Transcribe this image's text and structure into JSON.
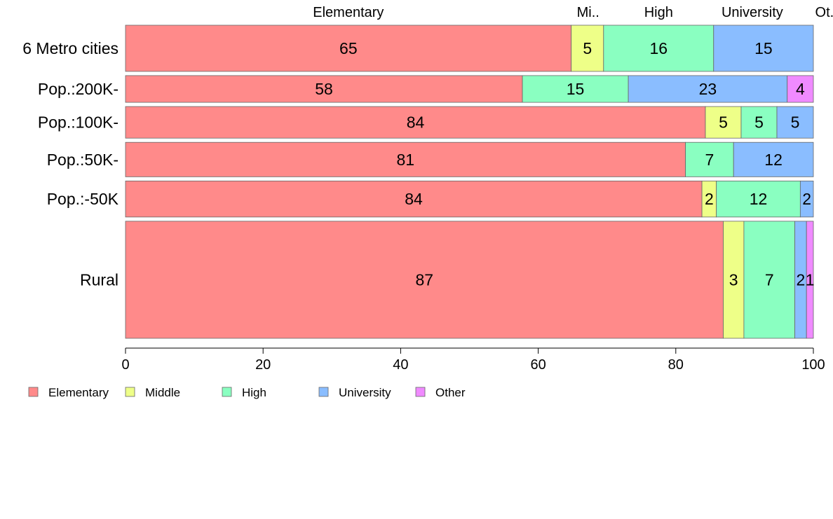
{
  "chart_data": {
    "type": "bar",
    "orientation": "horizontal",
    "stacked": true,
    "variable_width": true,
    "categories": [
      "6 Metro cities",
      "Pop.:200K-",
      "Pop.:100K-",
      "Pop.:50K-",
      "Pop.:-50K",
      "Rural"
    ],
    "category_weights": [
      0.114,
      0.066,
      0.078,
      0.085,
      0.089,
      0.289
    ],
    "series": [
      {
        "name": "Elementary",
        "color": "#FF8A8A",
        "values": [
          64.8,
          57.7,
          84.3,
          81.4,
          83.8,
          86.9
        ]
      },
      {
        "name": "Middle",
        "color": "#EEFF88",
        "values": [
          4.7,
          0.0,
          5.2,
          0.0,
          2.1,
          3.0
        ]
      },
      {
        "name": "High",
        "color": "#8AFFC1",
        "values": [
          16.0,
          15.4,
          5.2,
          7.0,
          12.2,
          7.4
        ]
      },
      {
        "name": "University",
        "color": "#8ABDFF",
        "values": [
          14.5,
          23.1,
          5.3,
          11.6,
          1.9,
          1.7
        ]
      },
      {
        "name": "Other",
        "color": "#F08AFF",
        "values": [
          0.0,
          3.8,
          0.0,
          0.0,
          0.0,
          1.0
        ]
      }
    ],
    "bar_labels": [
      [
        "65",
        "5",
        "16",
        "15",
        ""
      ],
      [
        "58",
        "",
        "15",
        "23",
        "4"
      ],
      [
        "84",
        "5",
        "5",
        "5",
        ""
      ],
      [
        "81",
        "",
        "7",
        "12",
        ""
      ],
      [
        "84",
        "2",
        "12",
        "2",
        ""
      ],
      [
        "87",
        "3",
        "7",
        "2",
        "1"
      ]
    ],
    "top_labels": [
      "Elementary",
      "Mi..",
      "High",
      "University",
      "Ot.."
    ],
    "x_ticks": [
      0,
      20,
      40,
      60,
      80,
      100
    ],
    "xlim": [
      0,
      100
    ],
    "title": "",
    "xlabel": "",
    "ylabel": "",
    "grid": false,
    "legend": {
      "position": "bottom-left",
      "items": [
        "Elementary",
        "Middle",
        "High",
        "University",
        "Other"
      ]
    },
    "bar_border_color": "#666666"
  }
}
